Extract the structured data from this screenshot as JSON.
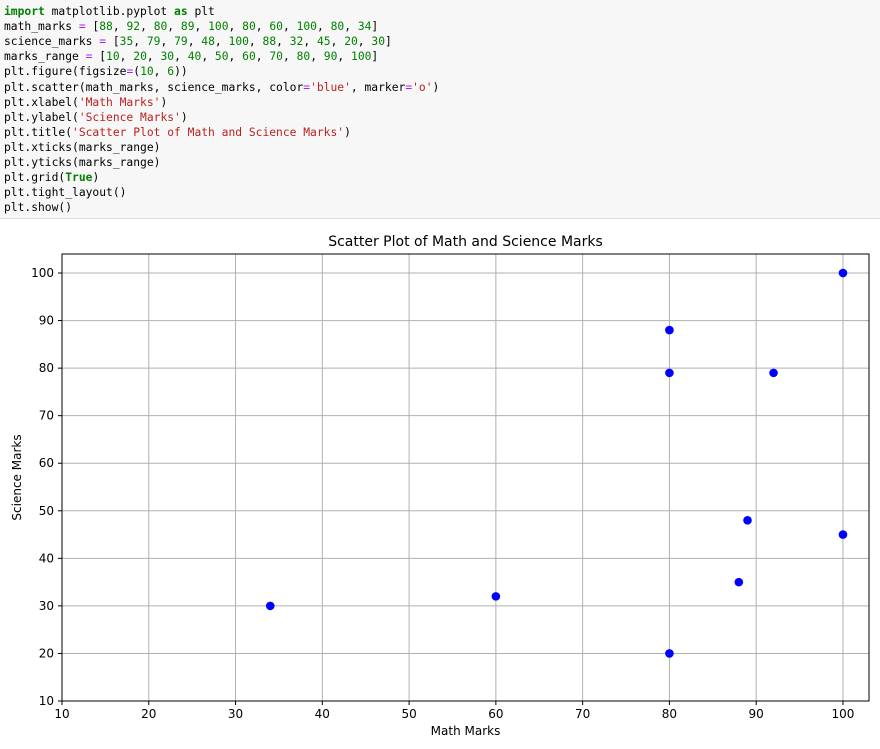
{
  "code": {
    "lines": [
      [
        {
          "t": "kw",
          "v": "import"
        },
        {
          "t": "",
          "v": " matplotlib.pyplot "
        },
        {
          "t": "kw",
          "v": "as"
        },
        {
          "t": "",
          "v": " plt"
        }
      ],
      [
        {
          "t": "",
          "v": "math_marks "
        },
        {
          "t": "op",
          "v": "="
        },
        {
          "t": "",
          "v": " ["
        },
        {
          "t": "num",
          "v": "88"
        },
        {
          "t": "",
          "v": ", "
        },
        {
          "t": "num",
          "v": "92"
        },
        {
          "t": "",
          "v": ", "
        },
        {
          "t": "num",
          "v": "80"
        },
        {
          "t": "",
          "v": ", "
        },
        {
          "t": "num",
          "v": "89"
        },
        {
          "t": "",
          "v": ", "
        },
        {
          "t": "num",
          "v": "100"
        },
        {
          "t": "",
          "v": ", "
        },
        {
          "t": "num",
          "v": "80"
        },
        {
          "t": "",
          "v": ", "
        },
        {
          "t": "num",
          "v": "60"
        },
        {
          "t": "",
          "v": ", "
        },
        {
          "t": "num",
          "v": "100"
        },
        {
          "t": "",
          "v": ", "
        },
        {
          "t": "num",
          "v": "80"
        },
        {
          "t": "",
          "v": ", "
        },
        {
          "t": "num",
          "v": "34"
        },
        {
          "t": "",
          "v": "]"
        }
      ],
      [
        {
          "t": "",
          "v": "science_marks "
        },
        {
          "t": "op",
          "v": "="
        },
        {
          "t": "",
          "v": " ["
        },
        {
          "t": "num",
          "v": "35"
        },
        {
          "t": "",
          "v": ", "
        },
        {
          "t": "num",
          "v": "79"
        },
        {
          "t": "",
          "v": ", "
        },
        {
          "t": "num",
          "v": "79"
        },
        {
          "t": "",
          "v": ", "
        },
        {
          "t": "num",
          "v": "48"
        },
        {
          "t": "",
          "v": ", "
        },
        {
          "t": "num",
          "v": "100"
        },
        {
          "t": "",
          "v": ", "
        },
        {
          "t": "num",
          "v": "88"
        },
        {
          "t": "",
          "v": ", "
        },
        {
          "t": "num",
          "v": "32"
        },
        {
          "t": "",
          "v": ", "
        },
        {
          "t": "num",
          "v": "45"
        },
        {
          "t": "",
          "v": ", "
        },
        {
          "t": "num",
          "v": "20"
        },
        {
          "t": "",
          "v": ", "
        },
        {
          "t": "num",
          "v": "30"
        },
        {
          "t": "",
          "v": "]"
        }
      ],
      [
        {
          "t": "",
          "v": "marks_range "
        },
        {
          "t": "op",
          "v": "="
        },
        {
          "t": "",
          "v": " ["
        },
        {
          "t": "num",
          "v": "10"
        },
        {
          "t": "",
          "v": ", "
        },
        {
          "t": "num",
          "v": "20"
        },
        {
          "t": "",
          "v": ", "
        },
        {
          "t": "num",
          "v": "30"
        },
        {
          "t": "",
          "v": ", "
        },
        {
          "t": "num",
          "v": "40"
        },
        {
          "t": "",
          "v": ", "
        },
        {
          "t": "num",
          "v": "50"
        },
        {
          "t": "",
          "v": ", "
        },
        {
          "t": "num",
          "v": "60"
        },
        {
          "t": "",
          "v": ", "
        },
        {
          "t": "num",
          "v": "70"
        },
        {
          "t": "",
          "v": ", "
        },
        {
          "t": "num",
          "v": "80"
        },
        {
          "t": "",
          "v": ", "
        },
        {
          "t": "num",
          "v": "90"
        },
        {
          "t": "",
          "v": ", "
        },
        {
          "t": "num",
          "v": "100"
        },
        {
          "t": "",
          "v": "]"
        }
      ],
      [
        {
          "t": "",
          "v": "plt.figure(figsize"
        },
        {
          "t": "op",
          "v": "="
        },
        {
          "t": "",
          "v": "("
        },
        {
          "t": "num",
          "v": "10"
        },
        {
          "t": "",
          "v": ", "
        },
        {
          "t": "num",
          "v": "6"
        },
        {
          "t": "",
          "v": "))"
        }
      ],
      [
        {
          "t": "",
          "v": "plt.scatter(math_marks, science_marks, color"
        },
        {
          "t": "op",
          "v": "="
        },
        {
          "t": "str",
          "v": "'blue'"
        },
        {
          "t": "",
          "v": ", marker"
        },
        {
          "t": "op",
          "v": "="
        },
        {
          "t": "str",
          "v": "'o'"
        },
        {
          "t": "",
          "v": ")"
        }
      ],
      [
        {
          "t": "",
          "v": "plt.xlabel("
        },
        {
          "t": "str",
          "v": "'Math Marks'"
        },
        {
          "t": "",
          "v": ")"
        }
      ],
      [
        {
          "t": "",
          "v": "plt.ylabel("
        },
        {
          "t": "str",
          "v": "'Science Marks'"
        },
        {
          "t": "",
          "v": ")"
        }
      ],
      [
        {
          "t": "",
          "v": "plt.title("
        },
        {
          "t": "str",
          "v": "'Scatter Plot of Math and Science Marks'"
        },
        {
          "t": "",
          "v": ")"
        }
      ],
      [
        {
          "t": "",
          "v": "plt.xticks(marks_range)"
        }
      ],
      [
        {
          "t": "",
          "v": "plt.yticks(marks_range)"
        }
      ],
      [
        {
          "t": "",
          "v": "plt.grid("
        },
        {
          "t": "bool",
          "v": "True"
        },
        {
          "t": "",
          "v": ")"
        }
      ],
      [
        {
          "t": "",
          "v": "plt.tight_layout()"
        }
      ],
      [
        {
          "t": "",
          "v": "plt.show()"
        }
      ]
    ]
  },
  "chart_data": {
    "type": "scatter",
    "title": "Scatter Plot of Math and Science Marks",
    "xlabel": "Math Marks",
    "ylabel": "Science Marks",
    "x": [
      88,
      92,
      80,
      89,
      100,
      80,
      60,
      100,
      80,
      34
    ],
    "y": [
      35,
      79,
      79,
      48,
      100,
      88,
      32,
      45,
      20,
      30
    ],
    "xticks": [
      10,
      20,
      30,
      40,
      50,
      60,
      70,
      80,
      90,
      100
    ],
    "yticks": [
      10,
      20,
      30,
      40,
      50,
      60,
      70,
      80,
      90,
      100
    ],
    "xlim": [
      10,
      103
    ],
    "ylim": [
      10,
      104
    ],
    "grid": true,
    "marker_color": "#0000ff",
    "marker": "o"
  }
}
